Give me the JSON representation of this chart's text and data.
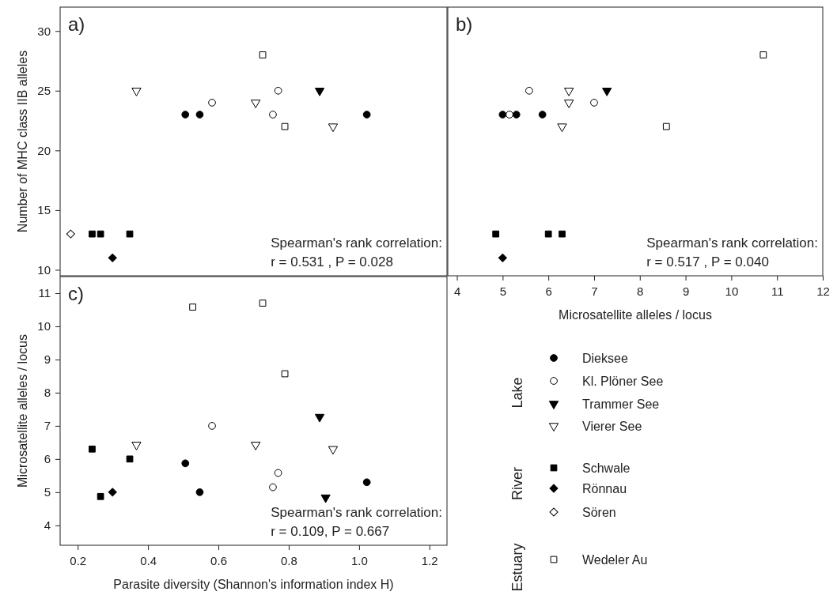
{
  "chart_data": [
    {
      "type": "scatter",
      "title": "a)",
      "ylabel": "Number of MHC class IIB alleles",
      "xlim": [
        0.15,
        1.25
      ],
      "ylim": [
        9.5,
        32
      ],
      "yticks": [
        10,
        15,
        20,
        25,
        30
      ],
      "tick_labels": "y",
      "legend": "bottom right",
      "annotations": [
        "Spearman's rank correlation:",
        "r  = 0.531 , P = 0.028"
      ],
      "series": [
        {
          "name": "Dieksee",
          "color": "#000000",
          "marker": "circle",
          "x": [
            0.506,
            0.547,
            1.022
          ],
          "values": [
            23,
            23,
            23
          ]
        },
        {
          "name": "Kl. Plöner See",
          "color": "#ffffff",
          "marker": "circle",
          "x": [
            0.582,
            0.77,
            0.755
          ],
          "values": [
            24,
            25,
            23
          ]
        },
        {
          "name": "Trammer See",
          "color": "#000000",
          "marker": "triangle",
          "x": [
            0.888
          ],
          "values": [
            25
          ]
        },
        {
          "name": "Vierer See",
          "color": "#ffffff",
          "marker": "triangle",
          "x": [
            0.367,
            0.706,
            0.926
          ],
          "values": [
            25,
            24,
            22
          ]
        },
        {
          "name": "Schwale",
          "color": "#000000",
          "marker": "square",
          "x": [
            0.241,
            0.265,
            0.348
          ],
          "values": [
            13,
            13,
            13
          ]
        },
        {
          "name": "Rönnau",
          "color": "#000000",
          "marker": "diamond",
          "x": [
            0.299
          ],
          "values": [
            11
          ]
        },
        {
          "name": "Sören",
          "color": "#ffffff",
          "marker": "diamond",
          "x": [
            0.18
          ],
          "values": [
            13
          ]
        },
        {
          "name": "Wedeler Au",
          "color": "#ffffff",
          "marker": "square",
          "x": [
            0.726,
            0.789
          ],
          "values": [
            28,
            22
          ]
        }
      ]
    },
    {
      "type": "scatter",
      "title": "b)",
      "xlabel": "Microsatellite alleles / locus",
      "xlim": [
        3.8,
        12
      ],
      "xticks": [
        4,
        5,
        6,
        7,
        8,
        9,
        10,
        11,
        12
      ],
      "ylim": [
        9.5,
        32
      ],
      "tick_labels": "x",
      "annotations": [
        "Spearman's rank correlation:",
        "r  = 0.517 , P = 0.040"
      ],
      "series": [
        {
          "color": "#000000",
          "marker": "circle",
          "x": [
            5.0,
            5.3,
            5.87
          ],
          "values": [
            23,
            23,
            23
          ]
        },
        {
          "color": "#ffffff",
          "marker": "circle",
          "x": [
            7.0,
            5.58,
            5.15
          ],
          "values": [
            24,
            25,
            23
          ]
        },
        {
          "color": "#000000",
          "marker": "triangle",
          "x": [
            7.28
          ],
          "values": [
            25
          ]
        },
        {
          "color": "#ffffff",
          "marker": "triangle",
          "x": [
            6.45,
            6.45,
            6.3
          ],
          "values": [
            25,
            24,
            22
          ]
        },
        {
          "color": "#000000",
          "marker": "square",
          "x": [
            4.85,
            6.0,
            6.3
          ],
          "values": [
            13,
            13,
            13
          ]
        },
        {
          "color": "#000000",
          "marker": "diamond",
          "x": [
            5.0
          ],
          "values": [
            11
          ]
        },
        {
          "color": "#ffffff",
          "marker": "square",
          "x": [
            10.7,
            8.58
          ],
          "values": [
            28,
            22
          ]
        }
      ]
    },
    {
      "type": "scatter",
      "title": "c)",
      "xlabel": "Parasite diversity (Shannon's information index H)",
      "ylabel": "Microsatellite alleles / locus",
      "xlim": [
        0.15,
        1.25
      ],
      "xticks": [
        0.2,
        0.4,
        0.6,
        0.8,
        {
          "value": 1,
          "label": "1.0"
        },
        1.2
      ],
      "ylim": [
        3.4,
        11.5
      ],
      "yticks": [
        4,
        5,
        6,
        7,
        8,
        9,
        10,
        11
      ],
      "annotations": [
        "Spearman's rank correlation:",
        "r  = 0.109, P = 0.667"
      ],
      "series": [
        {
          "color": "#000000",
          "marker": "circle",
          "x": [
            0.506,
            0.547,
            1.022
          ],
          "values": [
            5.87,
            5.0,
            5.3
          ]
        },
        {
          "color": "#ffffff",
          "marker": "circle",
          "x": [
            0.582,
            0.77,
            0.755
          ],
          "values": [
            7.0,
            5.58,
            5.15
          ]
        },
        {
          "color": "#000000",
          "marker": "triangle",
          "x": [
            0.888,
            0.905
          ],
          "values": [
            7.27,
            4.84
          ]
        },
        {
          "color": "#ffffff",
          "marker": "triangle",
          "x": [
            0.367,
            0.706,
            0.926
          ],
          "values": [
            6.43,
            6.43,
            6.3
          ]
        },
        {
          "color": "#000000",
          "marker": "square",
          "x": [
            0.241,
            0.265,
            0.348
          ],
          "values": [
            6.3,
            4.87,
            6.0
          ]
        },
        {
          "color": "#000000",
          "marker": "diamond",
          "x": [
            0.299
          ],
          "values": [
            5.0
          ]
        },
        {
          "color": "#ffffff",
          "marker": "square",
          "x": [
            0.527,
            0.726,
            0.789
          ],
          "values": [
            10.58,
            10.7,
            8.57
          ]
        }
      ]
    },
    {
      "type": "other",
      "annotations": [
        "Lake",
        "River",
        "Estuary"
      ]
    }
  ]
}
